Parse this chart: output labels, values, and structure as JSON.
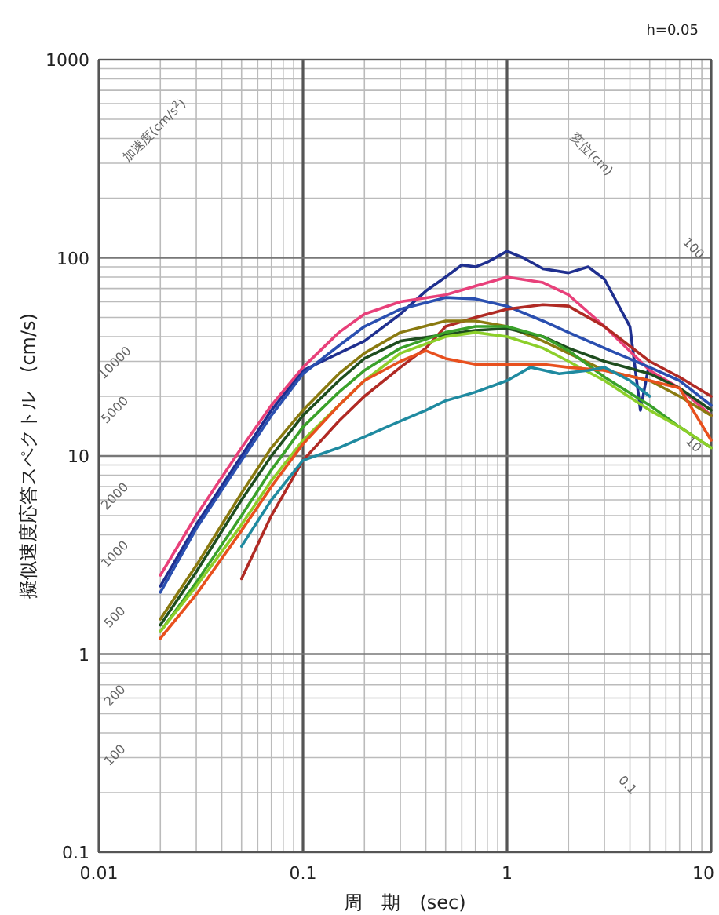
{
  "chart_data": {
    "type": "line",
    "log": "xy",
    "grid": true,
    "xlim": [
      0.01,
      10
    ],
    "ylim": [
      0.1,
      1000
    ],
    "xticks": [
      {
        "value": 0.01,
        "label": "0.01"
      },
      {
        "value": 0.1,
        "label": "0.1"
      },
      {
        "value": 1,
        "label": "1"
      },
      {
        "value": 10,
        "label": "10"
      }
    ],
    "yticks": [
      {
        "value": 0.1,
        "label": "0.1"
      },
      {
        "value": 1,
        "label": "1"
      },
      {
        "value": 10,
        "label": "10"
      },
      {
        "value": 100,
        "label": "100"
      },
      {
        "value": 1000,
        "label": "1000"
      }
    ],
    "xlabel": "周　期　(sec)",
    "ylabel": "擬似速度応答スペクトル　(cm/s)",
    "annotations": [
      "h=0.05",
      "加速度(cm/s$^{2}$)",
      "10000",
      "5000",
      "2000",
      "1000",
      "500",
      "200",
      "100",
      "変位(cm)",
      "100",
      "10",
      "0.1"
    ],
    "series": [
      {
        "color": "#1f2f8f",
        "x": [
          0.02,
          0.03,
          0.05,
          0.07,
          0.1,
          0.15,
          0.2,
          0.3,
          0.4,
          0.5,
          0.6,
          0.7,
          0.8,
          1,
          1.2,
          1.5,
          2,
          2.5,
          3,
          4,
          4.5,
          4.9
        ],
        "values": [
          2.2,
          4.5,
          10,
          17,
          27,
          33,
          38,
          52,
          68,
          80,
          92,
          90,
          95,
          108,
          100,
          88,
          84,
          90,
          78,
          45,
          17,
          27
        ]
      },
      {
        "color": "#e8407a",
        "x": [
          0.02,
          0.03,
          0.05,
          0.07,
          0.1,
          0.15,
          0.2,
          0.3,
          0.5,
          0.7,
          1,
          1.5,
          2,
          3,
          5,
          7,
          10
        ],
        "values": [
          2.5,
          5,
          11,
          18,
          28,
          42,
          52,
          60,
          65,
          72,
          80,
          75,
          65,
          45,
          27,
          22,
          16
        ]
      },
      {
        "color": "#2a4fb0",
        "x": [
          0.02,
          0.03,
          0.05,
          0.07,
          0.1,
          0.15,
          0.2,
          0.3,
          0.5,
          0.7,
          1,
          1.5,
          2,
          3,
          5,
          7,
          10
        ],
        "values": [
          2.05,
          4.3,
          9.5,
          16,
          26,
          36,
          45,
          55,
          63,
          62,
          57,
          48,
          42,
          35,
          28,
          24,
          18
        ]
      },
      {
        "color": "#b02a24",
        "x": [
          0.05,
          0.07,
          0.1,
          0.15,
          0.2,
          0.3,
          0.4,
          0.5,
          0.7,
          1,
          1.5,
          2,
          3,
          5,
          7,
          10
        ],
        "values": [
          2.4,
          5,
          9.5,
          15,
          20,
          28,
          35,
          45,
          50,
          55,
          58,
          57,
          45,
          30,
          25,
          20
        ]
      },
      {
        "color": "#8a7a10",
        "x": [
          0.02,
          0.03,
          0.05,
          0.07,
          0.1,
          0.15,
          0.2,
          0.3,
          0.5,
          0.7,
          1,
          1.5,
          2,
          3,
          5,
          7,
          10
        ],
        "values": [
          1.5,
          2.8,
          6.5,
          11,
          17,
          26,
          33,
          42,
          48,
          48,
          45,
          38,
          33,
          27,
          24,
          20,
          16
        ]
      },
      {
        "color": "#1e4d1e",
        "x": [
          0.02,
          0.03,
          0.05,
          0.07,
          0.1,
          0.15,
          0.2,
          0.3,
          0.5,
          0.7,
          1,
          1.5,
          2,
          3,
          5,
          7,
          10
        ],
        "values": [
          1.4,
          2.6,
          6,
          10,
          16,
          24,
          31,
          38,
          41,
          43,
          44,
          40,
          35,
          30,
          26,
          22,
          17
        ]
      },
      {
        "color": "#3aa12a",
        "x": [
          0.02,
          0.03,
          0.05,
          0.07,
          0.1,
          0.15,
          0.2,
          0.3,
          0.5,
          0.7,
          1,
          1.5,
          2,
          3,
          5,
          7,
          10
        ],
        "values": [
          1.3,
          2.3,
          5,
          8.5,
          14,
          21,
          27,
          35,
          42,
          45,
          45,
          40,
          34,
          25,
          18,
          14,
          11
        ]
      },
      {
        "color": "#8ccf2a",
        "x": [
          0.02,
          0.03,
          0.05,
          0.07,
          0.1,
          0.15,
          0.2,
          0.3,
          0.5,
          0.7,
          1,
          1.5,
          2,
          3,
          5,
          7,
          10
        ],
        "values": [
          1.3,
          2.2,
          4.5,
          7.5,
          12,
          18,
          24,
          33,
          40,
          42,
          40,
          35,
          30,
          24,
          17,
          14,
          11
        ]
      },
      {
        "color": "#e8501e",
        "x": [
          0.02,
          0.03,
          0.05,
          0.07,
          0.1,
          0.15,
          0.2,
          0.3,
          0.4,
          0.5,
          0.7,
          1,
          1.5,
          2,
          3,
          5,
          7,
          10
        ],
        "values": [
          1.2,
          2,
          4.2,
          7,
          11.5,
          18,
          24,
          30,
          34,
          31,
          29,
          29,
          29,
          28,
          27,
          24,
          22,
          12
        ]
      },
      {
        "color": "#1f8aa0",
        "x": [
          0.05,
          0.07,
          0.1,
          0.15,
          0.2,
          0.3,
          0.4,
          0.5,
          0.7,
          1,
          1.3,
          1.8,
          2.5,
          3,
          4,
          5
        ],
        "values": [
          3.5,
          6,
          9.5,
          11,
          12.5,
          15,
          17,
          19,
          21,
          24,
          28,
          26,
          27,
          28,
          24,
          20
        ]
      }
    ]
  }
}
